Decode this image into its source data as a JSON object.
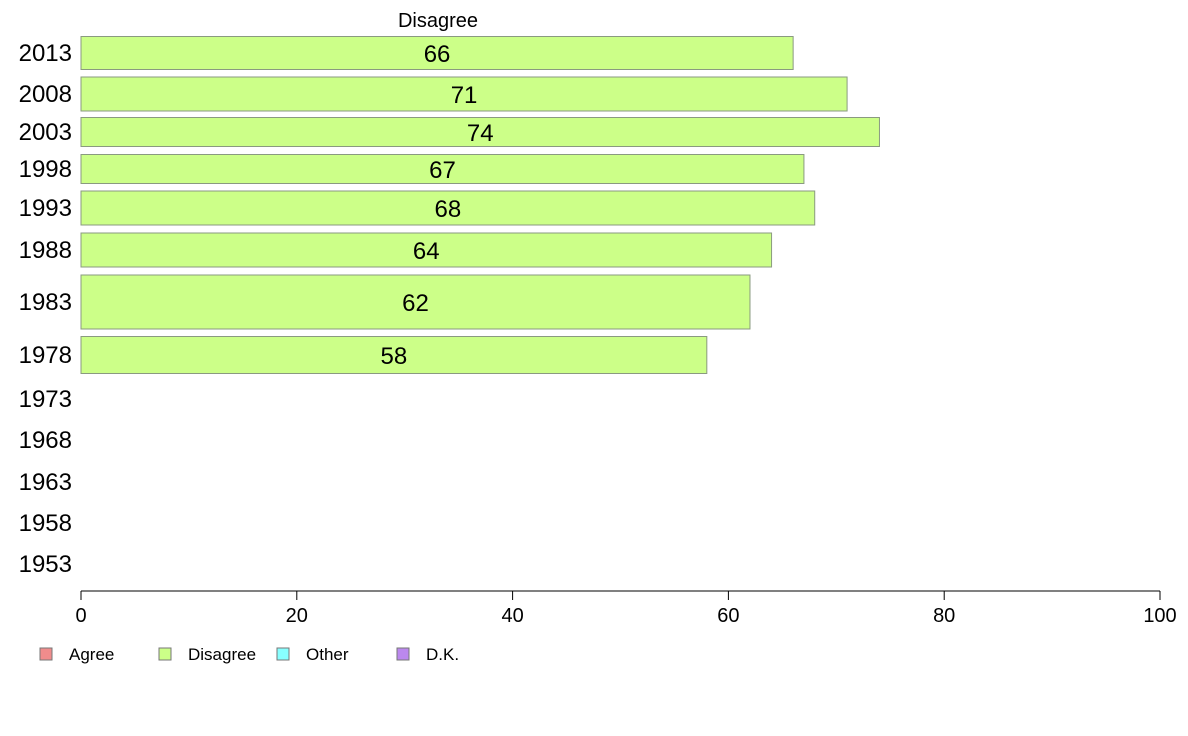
{
  "chart_data": {
    "type": "bar",
    "orientation": "horizontal",
    "title": "Disagree",
    "categories": [
      "2013",
      "2008",
      "2003",
      "1998",
      "1993",
      "1988",
      "1983",
      "1978",
      "1973",
      "1968",
      "1963",
      "1958",
      "1953"
    ],
    "series": [
      {
        "name": "Disagree",
        "color": "#ccff88",
        "values": [
          66,
          71,
          74,
          67,
          68,
          64,
          62,
          58,
          null,
          null,
          null,
          null,
          null
        ]
      }
    ],
    "xlim": [
      0,
      100
    ],
    "xticks": [
      "0",
      "20",
      "40",
      "60",
      "80",
      "100"
    ],
    "grid": false,
    "legend": {
      "position": "bottom-left",
      "items": [
        {
          "label": "Agree",
          "color": "#f08c8c"
        },
        {
          "label": "Disagree",
          "color": "#ccff88"
        },
        {
          "label": "Other",
          "color": "#88ffff"
        },
        {
          "label": "D.K.",
          "color": "#bb88ee"
        }
      ]
    }
  }
}
